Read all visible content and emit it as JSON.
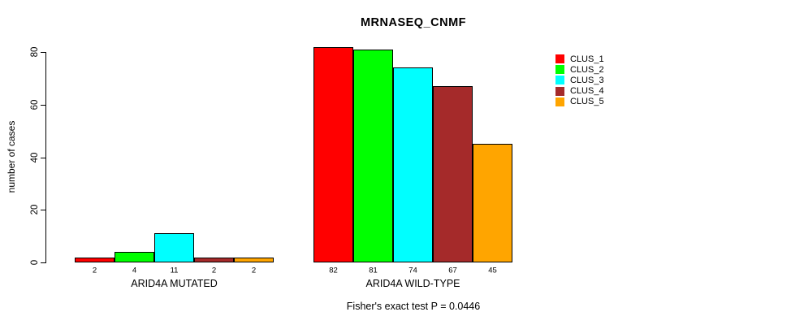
{
  "title": "MRNASEQ_CNMF",
  "y_axis_label": "number of cases",
  "footnote": "Fisher's exact test P = 0.0446",
  "legend": {
    "items": [
      {
        "label": "CLUS_1",
        "color": "#ff0000"
      },
      {
        "label": "CLUS_2",
        "color": "#00ff00"
      },
      {
        "label": "CLUS_3",
        "color": "#00ffff"
      },
      {
        "label": "CLUS_4",
        "color": "#a52a2a"
      },
      {
        "label": "CLUS_5",
        "color": "#ffa500"
      }
    ]
  },
  "chart_data": {
    "type": "bar",
    "title": "MRNASEQ_CNMF",
    "ylabel": "number of cases",
    "xlabel": "",
    "categories": [
      "ARID4A MUTATED",
      "ARID4A WILD-TYPE"
    ],
    "series": [
      {
        "name": "CLUS_1",
        "color": "#ff0000",
        "values": [
          2,
          82
        ]
      },
      {
        "name": "CLUS_2",
        "color": "#00ff00",
        "values": [
          4,
          81
        ]
      },
      {
        "name": "CLUS_3",
        "color": "#00ffff",
        "values": [
          11,
          74
        ]
      },
      {
        "name": "CLUS_4",
        "color": "#a52a2a",
        "values": [
          2,
          67
        ]
      },
      {
        "name": "CLUS_5",
        "color": "#ffa500",
        "values": [
          2,
          45
        ]
      }
    ],
    "bar_value_labels": [
      [
        2,
        4,
        11,
        2,
        2
      ],
      [
        82,
        81,
        74,
        67,
        45
      ]
    ],
    "yticks": [
      0,
      20,
      40,
      60,
      80
    ],
    "ylim": [
      0,
      85
    ],
    "grid": false,
    "legend_position": "right",
    "legend_entries": [
      "CLUS_1",
      "CLUS_2",
      "CLUS_3",
      "CLUS_4",
      "CLUS_5"
    ],
    "annotation": "Fisher's exact test P = 0.0446"
  }
}
